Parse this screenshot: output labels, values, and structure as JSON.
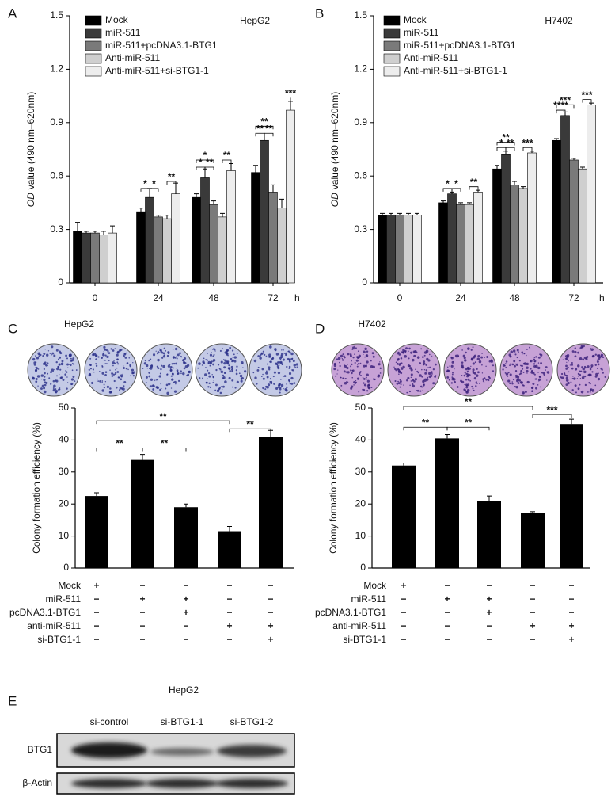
{
  "chart_data": [
    {
      "type": "grouped-bar",
      "panel": "A",
      "title": "HepG2",
      "y_label_italic": "OD",
      "y_label": "value (490 nm–620nm)",
      "categories": [
        "0",
        "24",
        "48",
        "72"
      ],
      "x_unit": "h",
      "ylim": [
        0,
        1.5
      ],
      "yticks": [
        0,
        0.3,
        0.6,
        0.9,
        1.2,
        1.5
      ],
      "series": [
        {
          "name": "Mock",
          "color": "#000000",
          "values": [
            0.29,
            0.4,
            0.48,
            0.62
          ],
          "errors": [
            0.05,
            0.02,
            0.02,
            0.04
          ]
        },
        {
          "name": "miR-511",
          "color": "#3a3a3a",
          "values": [
            0.28,
            0.48,
            0.59,
            0.8
          ],
          "errors": [
            0.01,
            0.05,
            0.05,
            0.03
          ]
        },
        {
          "name": "miR-511+pcDNA3.1-BTG1",
          "color": "#7a7a7a",
          "values": [
            0.28,
            0.37,
            0.44,
            0.51
          ],
          "errors": [
            0.01,
            0.01,
            0.02,
            0.04
          ]
        },
        {
          "name": "Anti-miR-511",
          "color": "#cfcfcf",
          "values": [
            0.27,
            0.36,
            0.37,
            0.42
          ],
          "errors": [
            0.02,
            0.02,
            0.02,
            0.05
          ]
        },
        {
          "name": "Anti-miR-511+si-BTG1-1",
          "color": "#ededed",
          "values": [
            0.28,
            0.5,
            0.63,
            0.97
          ],
          "errors": [
            0.04,
            0.06,
            0.04,
            0.05
          ]
        }
      ],
      "annotations": [
        "*",
        "*",
        "**",
        "*",
        "*",
        "**",
        "**",
        "**",
        "**",
        "**",
        "***"
      ]
    },
    {
      "type": "grouped-bar",
      "panel": "B",
      "title": "H7402",
      "y_label_italic": "OD",
      "y_label": "value (490 nm–620nm)",
      "categories": [
        "0",
        "24",
        "48",
        "72"
      ],
      "x_unit": "h",
      "ylim": [
        0,
        1.5
      ],
      "yticks": [
        0,
        0.3,
        0.6,
        0.9,
        1.2,
        1.5
      ],
      "series": [
        {
          "name": "Mock",
          "color": "#000000",
          "values": [
            0.38,
            0.45,
            0.64,
            0.8
          ],
          "errors": [
            0.01,
            0.01,
            0.02,
            0.01
          ]
        },
        {
          "name": "miR-511",
          "color": "#3a3a3a",
          "values": [
            0.38,
            0.5,
            0.72,
            0.94
          ],
          "errors": [
            0.01,
            0.01,
            0.02,
            0.02
          ]
        },
        {
          "name": "miR-511+pcDNA3.1-BTG1",
          "color": "#7a7a7a",
          "values": [
            0.38,
            0.44,
            0.55,
            0.69
          ],
          "errors": [
            0.01,
            0.01,
            0.02,
            0.01
          ]
        },
        {
          "name": "Anti-miR-511",
          "color": "#cfcfcf",
          "values": [
            0.38,
            0.44,
            0.53,
            0.64
          ],
          "errors": [
            0.01,
            0.01,
            0.01,
            0.01
          ]
        },
        {
          "name": "Anti-miR-511+si-BTG1-1",
          "color": "#ededed",
          "values": [
            0.38,
            0.51,
            0.73,
            1.0
          ],
          "errors": [
            0.01,
            0.01,
            0.01,
            0.01
          ]
        }
      ],
      "annotations": [
        "*",
        "*",
        "**",
        "**",
        "*",
        "**",
        "***",
        "***",
        "****",
        "***"
      ]
    },
    {
      "type": "bar",
      "panel": "C",
      "title": "HepG2",
      "y_label": "Colony formation efficiency (%)",
      "ylim": [
        0,
        50
      ],
      "yticks": [
        0,
        10,
        20,
        30,
        40,
        50
      ],
      "color": "#000000",
      "values": [
        22.5,
        34,
        19,
        11.5,
        41
      ],
      "errors": [
        1,
        1.5,
        1,
        1.5,
        2
      ],
      "annotations": [
        "**",
        "**",
        "**",
        "**"
      ],
      "conditions": [
        {
          "name": "Mock",
          "signs": [
            "+",
            "−",
            "−",
            "−",
            "−"
          ]
        },
        {
          "name": "miR-511",
          "signs": [
            "−",
            "+",
            "+",
            "−",
            "−"
          ]
        },
        {
          "name": "pcDNA3.1-BTG1",
          "signs": [
            "−",
            "−",
            "+",
            "−",
            "−"
          ]
        },
        {
          "name": "anti-miR-511",
          "signs": [
            "−",
            "−",
            "−",
            "+",
            "+"
          ]
        },
        {
          "name": "si-BTG1-1",
          "signs": [
            "−",
            "−",
            "−",
            "−",
            "+"
          ]
        }
      ]
    },
    {
      "type": "bar",
      "panel": "D",
      "title": "H7402",
      "y_label": "Colony formation efficiency (%)",
      "ylim": [
        0,
        50
      ],
      "yticks": [
        0,
        10,
        20,
        30,
        40,
        50
      ],
      "color": "#000000",
      "values": [
        32,
        40.5,
        21,
        17.3,
        45
      ],
      "errors": [
        0.8,
        1.2,
        1.5,
        0.3,
        1.5
      ],
      "annotations": [
        "**",
        "***",
        "**",
        "**"
      ],
      "conditions": [
        {
          "name": "Mock",
          "signs": [
            "+",
            "−",
            "−",
            "−",
            "−"
          ]
        },
        {
          "name": "miR-511",
          "signs": [
            "−",
            "+",
            "+",
            "−",
            "−"
          ]
        },
        {
          "name": "pcDNA3.1-BTG1",
          "signs": [
            "−",
            "−",
            "+",
            "−",
            "−"
          ]
        },
        {
          "name": "anti-miR-511",
          "signs": [
            "−",
            "−",
            "−",
            "+",
            "+"
          ]
        },
        {
          "name": "si-BTG1-1",
          "signs": [
            "−",
            "−",
            "−",
            "−",
            "+"
          ]
        }
      ]
    }
  ],
  "blot": {
    "panel": "E",
    "title": "HepG2",
    "columns": [
      "si-control",
      "si-BTG1-1",
      "si-BTG1-2"
    ],
    "rows": [
      "BTG1",
      "β-Actin"
    ]
  }
}
